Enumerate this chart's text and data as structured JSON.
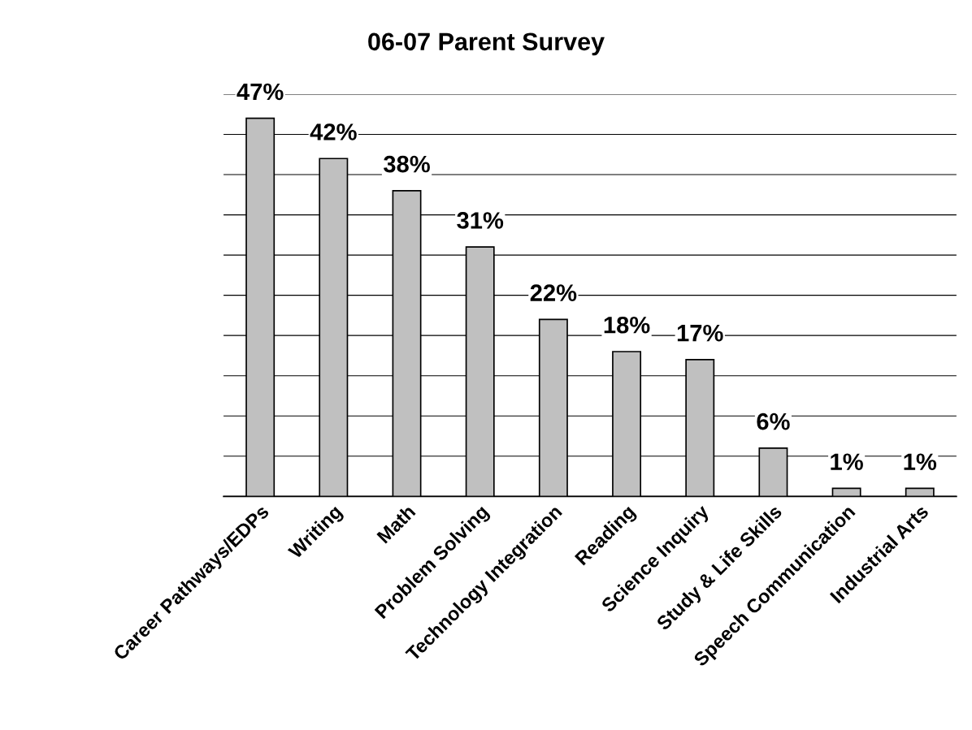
{
  "chart_data": {
    "type": "bar",
    "title": "06-07 Parent Survey",
    "categories": [
      "Career Pathways/EDPs",
      "Writing",
      "Math",
      "Problem Solving",
      "Technology Integration",
      "Reading",
      "Science Inquiry",
      "Study & Life Skills",
      "Speech Communication",
      "Industrial Arts"
    ],
    "values": [
      47,
      42,
      38,
      31,
      22,
      18,
      17,
      6,
      1,
      1
    ],
    "value_labels": [
      "47%",
      "42%",
      "38%",
      "31%",
      "22%",
      "18%",
      "17%",
      "6%",
      "1%",
      "1%"
    ],
    "color": "#c0c0c0",
    "ylim": [
      0,
      50
    ],
    "yticks": [
      {
        "value": 0,
        "label": null
      },
      {
        "value": 5,
        "label": null
      },
      {
        "value": 10,
        "label": null
      },
      {
        "value": 15,
        "label": null
      },
      {
        "value": 20,
        "label": null
      },
      {
        "value": 25,
        "label": null
      },
      {
        "value": 30,
        "label": null
      },
      {
        "value": 35,
        "label": null
      },
      {
        "value": 40,
        "label": null
      },
      {
        "value": 45,
        "label": null
      },
      {
        "value": 50,
        "label": null
      }
    ],
    "grid": "y",
    "tick_labels": "x",
    "legend": false
  }
}
